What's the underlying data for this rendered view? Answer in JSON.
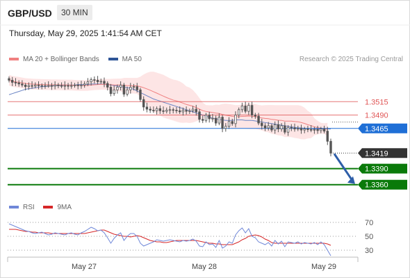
{
  "header": {
    "pair": "GBP/USD",
    "timeframe": "30 MIN",
    "timestamp": "Thursday, May 29, 2025 1:41:54 AM CET"
  },
  "legend": {
    "items": [
      {
        "label": "MA 20 + Bollinger Bands",
        "color": "#f08080"
      },
      {
        "label": "MA 50",
        "color": "#2f5597"
      }
    ],
    "credit": "Research © 2025 Trading Central"
  },
  "rsi_legend": {
    "items": [
      {
        "label": "RSI",
        "color": "#6f87d8"
      },
      {
        "label": "9MA",
        "color": "#d62728"
      }
    ]
  },
  "colors": {
    "resistance": "#e05555",
    "pivot": "#1f6fd6",
    "current": "#333333",
    "support": "#0a7a0a",
    "arrow": "#2e5ea8",
    "candle_up": "#555555",
    "candle_down": "#555555",
    "band_fill": "#fde2e2",
    "ma20": "#f08080",
    "ma50": "#6a84c4"
  },
  "chart_data": [
    {
      "type": "line",
      "name": "GBP/USD price chart",
      "ylim": [
        1.3335,
        1.3575
      ],
      "x_ticks": [
        "May 27",
        "May 28",
        "May 29"
      ],
      "levels": [
        {
          "label": "1.3515",
          "value": 1.3515,
          "kind": "resistance"
        },
        {
          "label": "1.3490",
          "value": 1.349,
          "kind": "resistance"
        },
        {
          "label": "1.3465",
          "value": 1.3465,
          "kind": "pivot"
        },
        {
          "label": "1.3419",
          "value": 1.3419,
          "kind": "current"
        },
        {
          "label": "1.3390",
          "value": 1.339,
          "kind": "support"
        },
        {
          "label": "1.3360",
          "value": 1.336,
          "kind": "support"
        }
      ],
      "close": [
        1.3555,
        1.3551,
        1.355,
        1.3548,
        1.3546,
        1.3543,
        1.3545,
        1.3544,
        1.3546,
        1.3545,
        1.3544,
        1.3545,
        1.3545,
        1.3544,
        1.3546,
        1.3545,
        1.3544,
        1.3545,
        1.3544,
        1.3545,
        1.3546,
        1.3545,
        1.3546,
        1.3548,
        1.3552,
        1.3556,
        1.3555,
        1.3552,
        1.3553,
        1.3549,
        1.3542,
        1.353,
        1.3537,
        1.3542,
        1.3546,
        1.3529,
        1.3537,
        1.3542,
        1.3543,
        1.3537,
        1.3519,
        1.3505,
        1.3501,
        1.3499,
        1.3498,
        1.3502,
        1.3498,
        1.3497,
        1.3499,
        1.35,
        1.3499,
        1.3498,
        1.3496,
        1.3499,
        1.3497,
        1.3498,
        1.3501,
        1.3496,
        1.3482,
        1.348,
        1.349,
        1.3483,
        1.3484,
        1.3475,
        1.3486,
        1.3465,
        1.3469,
        1.3478,
        1.3474,
        1.349,
        1.35,
        1.3507,
        1.3497,
        1.3508,
        1.349,
        1.3488,
        1.3475,
        1.347,
        1.3466,
        1.347,
        1.3462,
        1.3472,
        1.3464,
        1.347,
        1.3458,
        1.3467,
        1.3466,
        1.3464,
        1.3465,
        1.3462,
        1.3464,
        1.3463,
        1.3462,
        1.3463,
        1.3461,
        1.3464,
        1.346,
        1.3441,
        1.3419
      ],
      "ma50": [
        1.3528,
        1.353,
        1.3532,
        1.3534,
        1.3536,
        1.3538,
        1.3539,
        1.354,
        1.3541,
        1.3542,
        1.3543,
        1.3543,
        1.3544,
        1.3544,
        1.3545,
        1.3545,
        1.3545,
        1.3546,
        1.3546,
        1.3546,
        1.3546,
        1.3547,
        1.3547,
        1.3547,
        1.3547,
        1.3548,
        1.3548,
        1.3548,
        1.3548,
        1.3547,
        1.3547,
        1.3546,
        1.3545,
        1.3544,
        1.3543,
        1.3542,
        1.3541,
        1.354,
        1.3538,
        1.3535,
        1.3532,
        1.3529,
        1.3526,
        1.3523,
        1.352,
        1.3518,
        1.3516,
        1.3514,
        1.3512,
        1.351,
        1.3508,
        1.3506,
        1.3504,
        1.3502,
        1.35,
        1.3498,
        1.3496,
        1.3494,
        1.3492,
        1.349,
        1.3488,
        1.3486,
        1.3484,
        1.3483,
        1.3482,
        1.3481,
        1.348,
        1.348,
        1.348,
        1.3481,
        1.3481,
        1.3481,
        1.348,
        1.348,
        1.348,
        1.3479,
        1.3478,
        1.3477,
        1.3476,
        1.3475,
        1.3474,
        1.3473,
        1.3472,
        1.3471,
        1.347,
        1.3469,
        1.3468,
        1.3467,
        1.3466,
        1.3466,
        1.3465,
        1.3465,
        1.3465,
        1.3464,
        1.3464,
        1.3464,
        1.3464,
        1.3464,
        1.3464
      ]
    },
    {
      "type": "line",
      "name": "RSI panel",
      "ylim": [
        20,
        80
      ],
      "y_ticks": [
        70,
        50,
        30
      ],
      "rsi": [
        68,
        66,
        64,
        62,
        60,
        58,
        57,
        55,
        54,
        55,
        56,
        54,
        52,
        53,
        55,
        54,
        53,
        52,
        54,
        55,
        53,
        52,
        55,
        57,
        60,
        63,
        61,
        58,
        59,
        55,
        48,
        40,
        47,
        52,
        55,
        44,
        50,
        54,
        54,
        50,
        40,
        36,
        38,
        40,
        42,
        45,
        44,
        43,
        44,
        45,
        44,
        43,
        42,
        44,
        43,
        44,
        46,
        43,
        36,
        35,
        42,
        38,
        39,
        34,
        44,
        33,
        36,
        42,
        40,
        52,
        58,
        62,
        55,
        61,
        50,
        48,
        42,
        40,
        38,
        41,
        36,
        44,
        39,
        43,
        35,
        42,
        41,
        40,
        42,
        39,
        41,
        40,
        39,
        41,
        38,
        42,
        38,
        30,
        22
      ],
      "ma9": [
        60,
        60,
        60,
        59,
        58,
        57,
        57,
        56,
        56,
        55,
        55,
        55,
        55,
        54,
        54,
        54,
        54,
        54,
        54,
        54,
        54,
        54,
        54,
        54,
        55,
        56,
        57,
        58,
        59,
        59,
        57,
        55,
        53,
        52,
        51,
        50,
        50,
        49,
        50,
        51,
        50,
        48,
        46,
        44,
        43,
        42,
        42,
        41,
        41,
        42,
        43,
        44,
        44,
        44,
        44,
        44,
        44,
        44,
        43,
        42,
        41,
        40,
        40,
        39,
        39,
        38,
        38,
        38,
        38,
        40,
        42,
        45,
        47,
        50,
        51,
        52,
        51,
        49,
        46,
        44,
        41,
        40,
        40,
        40,
        40,
        40,
        40,
        40,
        40,
        40,
        40,
        40,
        40,
        40,
        40,
        40,
        40,
        39,
        37
      ]
    }
  ]
}
